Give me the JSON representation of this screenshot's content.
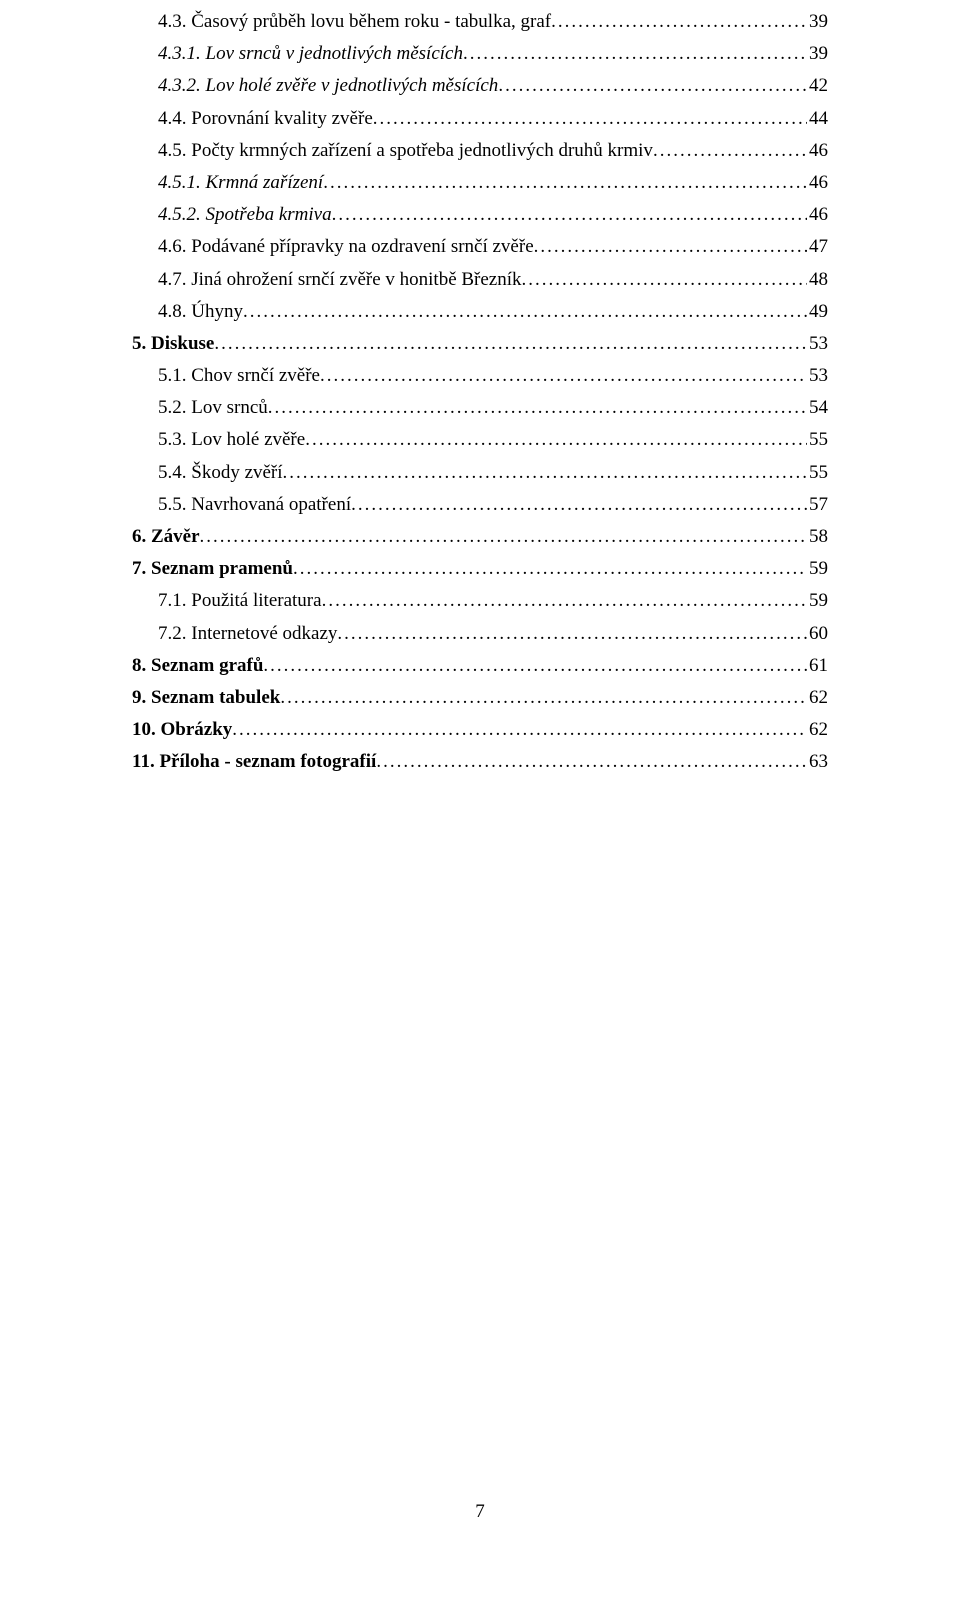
{
  "pageNumber": "7",
  "entries": [
    {
      "indent": 1,
      "italic": false,
      "bold": false,
      "label": "4.3. Časový průběh lovu během roku - tabulka, graf",
      "page": "39"
    },
    {
      "indent": 1,
      "italic": true,
      "bold": false,
      "label": "4.3.1. Lov srnců v jednotlivých měsících",
      "page": "39"
    },
    {
      "indent": 1,
      "italic": true,
      "bold": false,
      "label": "4.3.2. Lov holé zvěře v jednotlivých měsících",
      "page": "42"
    },
    {
      "indent": 1,
      "italic": false,
      "bold": false,
      "label": "4.4. Porovnání kvality zvěře",
      "page": "44"
    },
    {
      "indent": 1,
      "italic": false,
      "bold": false,
      "label": "4.5. Počty krmných zařízení a spotřeba jednotlivých druhů krmiv",
      "page": "46"
    },
    {
      "indent": 1,
      "italic": true,
      "bold": false,
      "label": "4.5.1. Krmná zařízení",
      "page": "46"
    },
    {
      "indent": 1,
      "italic": true,
      "bold": false,
      "label": "4.5.2. Spotřeba krmiva",
      "page": "46"
    },
    {
      "indent": 1,
      "italic": false,
      "bold": false,
      "label": "4.6. Podávané přípravky na ozdravení srnčí zvěře",
      "page": "47"
    },
    {
      "indent": 1,
      "italic": false,
      "bold": false,
      "label": "4.7. Jiná ohrožení srnčí zvěře v honitbě Březník",
      "page": "48"
    },
    {
      "indent": 1,
      "italic": false,
      "bold": false,
      "label": "4.8. Úhyny",
      "page": "49"
    },
    {
      "indent": 0,
      "italic": false,
      "bold": true,
      "label": "5.    Diskuse",
      "page": "53"
    },
    {
      "indent": 1,
      "italic": false,
      "bold": false,
      "label": "5.1. Chov srnčí zvěře",
      "page": "53"
    },
    {
      "indent": 1,
      "italic": false,
      "bold": false,
      "label": "5.2. Lov srnců",
      "page": "54"
    },
    {
      "indent": 1,
      "italic": false,
      "bold": false,
      "label": "5.3. Lov holé zvěře",
      "page": "55"
    },
    {
      "indent": 1,
      "italic": false,
      "bold": false,
      "label": "5.4. Škody zvěří",
      "page": "55"
    },
    {
      "indent": 1,
      "italic": false,
      "bold": false,
      "label": "5.5. Navrhovaná opatření",
      "page": "57"
    },
    {
      "indent": 0,
      "italic": false,
      "bold": true,
      "label": "6.   Závěr",
      "page": "58"
    },
    {
      "indent": 0,
      "italic": false,
      "bold": true,
      "label": "7.   Seznam pramenů",
      "page": "59"
    },
    {
      "indent": 1,
      "italic": false,
      "bold": false,
      "label": "7.1. Použitá literatura",
      "page": "59"
    },
    {
      "indent": 1,
      "italic": false,
      "bold": false,
      "label": "7.2. Internetové odkazy",
      "page": "60"
    },
    {
      "indent": 0,
      "italic": false,
      "bold": true,
      "label": "8.   Seznam grafů",
      "page": "61"
    },
    {
      "indent": 0,
      "italic": false,
      "bold": true,
      "label": "9.   Seznam tabulek",
      "page": "62"
    },
    {
      "indent": 0,
      "italic": false,
      "bold": true,
      "label": "10. Obrázky",
      "page": "62"
    },
    {
      "indent": 0,
      "italic": false,
      "bold": true,
      "label": "11. Příloha - seznam fotografií",
      "page": "63"
    }
  ]
}
